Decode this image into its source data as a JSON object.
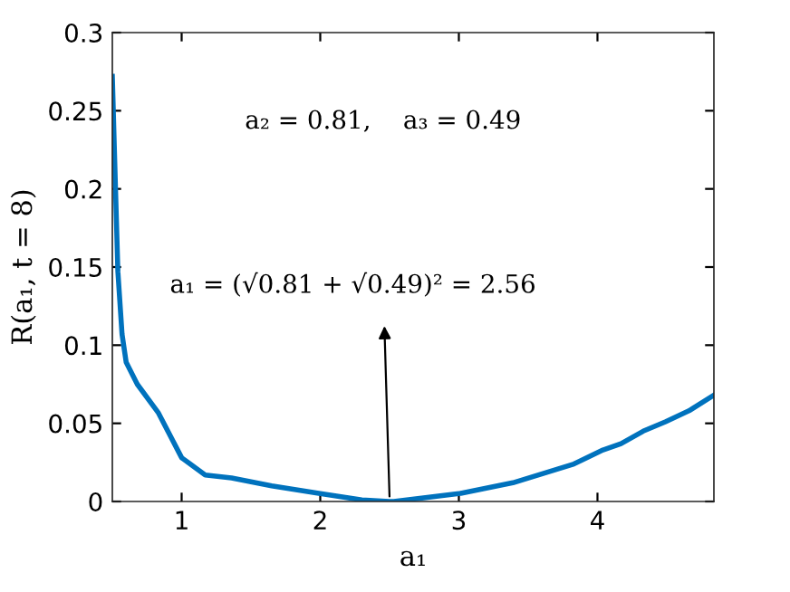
{
  "chart_data": {
    "type": "line",
    "xlabel": "a₁",
    "ylabel": "R(a₁, t = 8)",
    "x": [
      0.5,
      0.51,
      0.54,
      0.57,
      0.6,
      0.68,
      0.83,
      1.0,
      1.17,
      1.36,
      1.65,
      2.0,
      2.3,
      2.5,
      2.53,
      3.0,
      3.39,
      3.83,
      4.04,
      4.17,
      4.33,
      4.49,
      4.66,
      4.84
    ],
    "series": [
      {
        "color": "#0072bd",
        "values": [
          0.272,
          0.24,
          0.147,
          0.107,
          0.089,
          0.075,
          0.057,
          0.028,
          0.017,
          0.015,
          0.01,
          0.005,
          0.001,
          0.0,
          0.0,
          0.005,
          0.012,
          0.024,
          0.033,
          0.037,
          0.045,
          0.051,
          0.058,
          0.068
        ]
      }
    ],
    "xlim": [
      0.5,
      4.84
    ],
    "xticks": [
      1,
      2,
      3,
      4
    ],
    "ylim": [
      0,
      0.3
    ],
    "yticks": [
      0,
      0.05,
      0.1,
      0.15,
      0.2,
      0.25,
      0.3
    ],
    "grid": false,
    "marker": "none",
    "line_style": "solid",
    "annotations": [
      "a₂ = 0.81,    a₃ = 0.49",
      "a₁ = (√0.81 + √0.49)² = 2.56"
    ]
  }
}
